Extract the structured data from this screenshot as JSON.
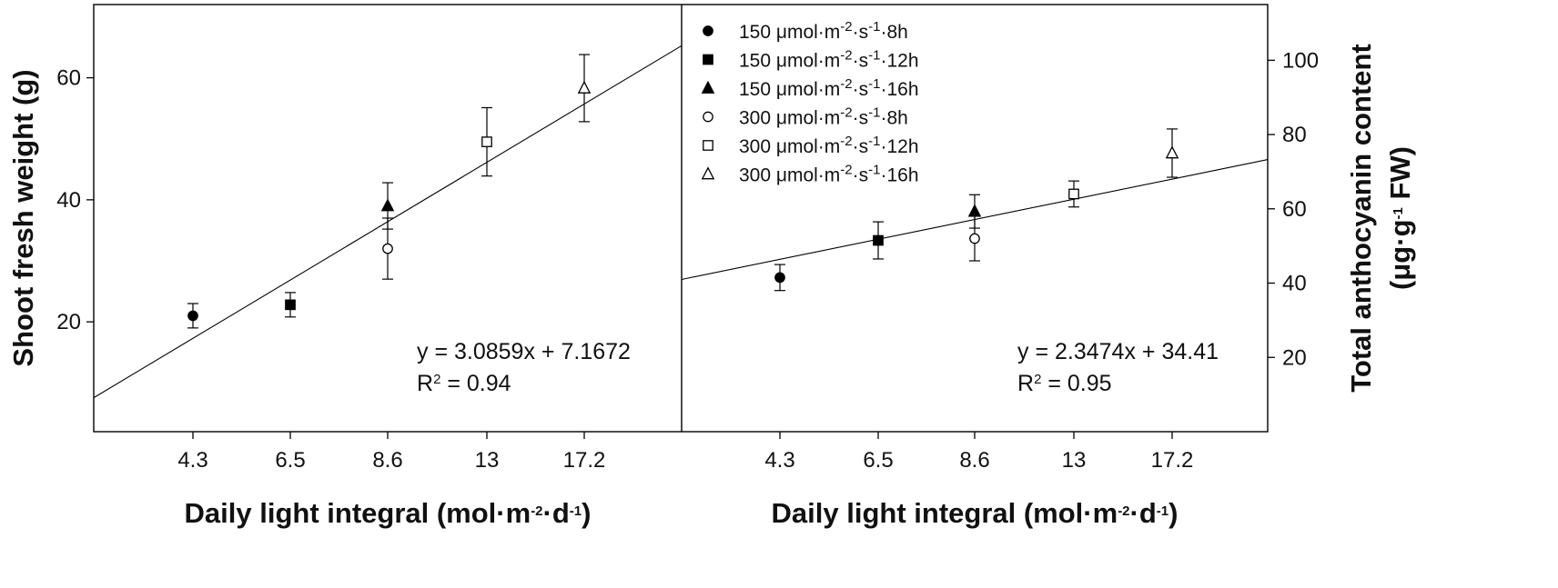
{
  "chart_data": [
    {
      "type": "scatter",
      "panel": "left",
      "xlabel": "Daily light integral (mol·m⁻²·d⁻¹)",
      "ylabel": "Shoot fresh weight (g)",
      "categories": [
        "4.3",
        "6.5",
        "8.6",
        "13",
        "17.2"
      ],
      "ylim": [
        2,
        72
      ],
      "yticks": [
        20,
        40,
        60
      ],
      "points": [
        {
          "x": "4.3",
          "y": 21.0,
          "err": 2.0,
          "marker": "filled-circle"
        },
        {
          "x": "6.5",
          "y": 22.8,
          "err": 2.0,
          "marker": "filled-square"
        },
        {
          "x": "8.6",
          "y": 39.0,
          "err": 3.8,
          "marker": "filled-triangle"
        },
        {
          "x": "8.6",
          "y": 32.0,
          "err": 5.0,
          "marker": "open-circle"
        },
        {
          "x": "13",
          "y": 49.5,
          "err": 5.6,
          "marker": "open-square"
        },
        {
          "x": "17.2",
          "y": 58.3,
          "err": 5.5,
          "marker": "open-triangle"
        }
      ],
      "trendline": {
        "slope": 3.0859,
        "intercept": 7.1672
      },
      "equation": "y = 3.0859x + 7.1672",
      "r2_prefix": "R",
      "r2_exp": "2",
      "r2_value": " = 0.94",
      "grid": false
    },
    {
      "type": "scatter",
      "panel": "right",
      "xlabel": "Daily light integral (mol·m⁻²·d⁻¹)",
      "ylabel": "Total anthocyanin content (μg·g⁻¹ FW)",
      "categories": [
        "4.3",
        "6.5",
        "8.6",
        "13",
        "17.2"
      ],
      "ylim": [
        0,
        115
      ],
      "yticks": [
        20,
        40,
        60,
        80,
        100
      ],
      "points": [
        {
          "x": "4.3",
          "y": 41.5,
          "err": 3.5,
          "marker": "filled-circle"
        },
        {
          "x": "6.5",
          "y": 51.5,
          "err": 5.0,
          "marker": "filled-square"
        },
        {
          "x": "8.6",
          "y": 59.3,
          "err": 4.5,
          "marker": "filled-triangle"
        },
        {
          "x": "8.6",
          "y": 52.0,
          "err": 6.0,
          "marker": "open-circle"
        },
        {
          "x": "13",
          "y": 64.0,
          "err": 3.5,
          "marker": "open-square"
        },
        {
          "x": "17.2",
          "y": 75.0,
          "err": 6.5,
          "marker": "open-triangle"
        }
      ],
      "trendline": {
        "slope": 2.3474,
        "intercept": 34.41
      },
      "equation": "y = 2.3474x + 34.41",
      "r2_prefix": "R",
      "r2_exp": "2",
      "r2_value": " = 0.95",
      "grid": false
    }
  ],
  "legend": {
    "placement": "top-left of right panel",
    "items": [
      {
        "marker": "filled-circle",
        "text": "150 μmol·m⁻²·s⁻¹·8h"
      },
      {
        "marker": "filled-square",
        "text": "150 μmol·m⁻²·s⁻¹·12h"
      },
      {
        "marker": "filled-triangle",
        "text": "150 μmol·m⁻²·s⁻¹·16h"
      },
      {
        "marker": "open-circle",
        "text": "300 μmol·m⁻²·s⁻¹·8h"
      },
      {
        "marker": "open-square",
        "text": "300 μmol·m⁻²·s⁻¹·12h"
      },
      {
        "marker": "open-triangle",
        "text": "300 μmol·m⁻²·s⁻¹·16h"
      }
    ]
  }
}
